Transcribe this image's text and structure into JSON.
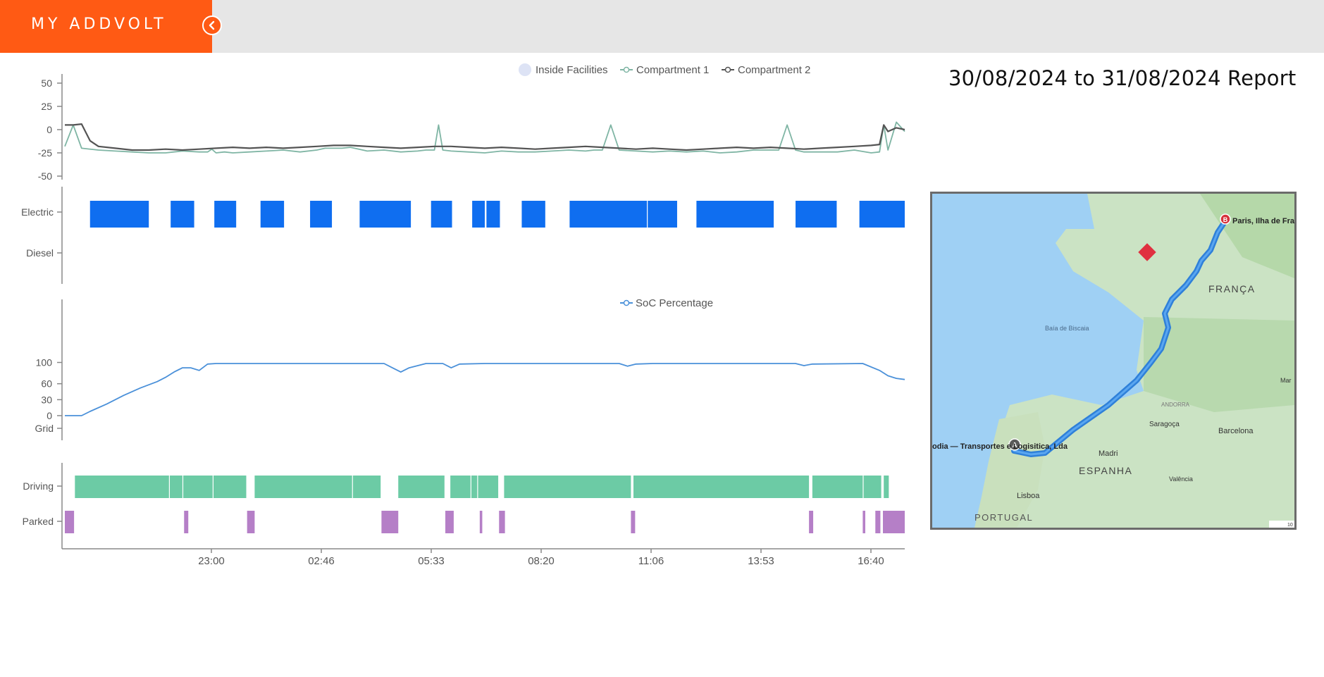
{
  "app": {
    "brand": "MY ADDVOLT",
    "report_title": "30/08/2024 to 31/08/2024 Report"
  },
  "temperature_chart": {
    "legend": [
      "Inside Facilities",
      "Compartment 1",
      "Compartment 2"
    ],
    "y_ticks": [
      "50",
      "25",
      "0",
      "-25",
      "-50"
    ],
    "ylim": [
      -50,
      50
    ]
  },
  "energy_chart": {
    "categories": [
      "Electric",
      "Diesel"
    ]
  },
  "soc_chart": {
    "legend": "SoC Percentage",
    "y_ticks": [
      "100",
      "60",
      "30",
      "0"
    ],
    "grid_label": "Grid"
  },
  "status_chart": {
    "categories": [
      "Driving",
      "Parked"
    ]
  },
  "x_ticks": [
    "23:00",
    "02:46",
    "05:33",
    "08:20",
    "11:06",
    "13:53",
    "16:40"
  ],
  "colors": {
    "brand": "#ff5a14",
    "compartment1": "#7fb5a4",
    "compartment2": "#545454",
    "electric": "#0f6ef0",
    "soc": "#4a90d9",
    "driving": "#6ccba5",
    "parked": "#b57fc7",
    "inside_facilities": "#dde3f5"
  },
  "chart_data": [
    {
      "type": "line",
      "title": "",
      "series": [
        {
          "name": "Compartment 1",
          "x": [
            0,
            1,
            2,
            4,
            6,
            8,
            10,
            12,
            14,
            16,
            17,
            17.5,
            18,
            19,
            20,
            22,
            24,
            26,
            28,
            30,
            31,
            32,
            33,
            34,
            36,
            38,
            40,
            42,
            43,
            44,
            44.5,
            45,
            46,
            48,
            50,
            52,
            54,
            56,
            58,
            60,
            62,
            63,
            64,
            65,
            66,
            68,
            70,
            72,
            74,
            76,
            78,
            80,
            82,
            84,
            85,
            86,
            87,
            88,
            90,
            92,
            94,
            96,
            97,
            97.5,
            98,
            99,
            100
          ],
          "y": [
            -18,
            5,
            -20,
            -22,
            -23,
            -24,
            -25,
            -25,
            -23,
            -24,
            -24,
            -21,
            -25,
            -24,
            -25,
            -24,
            -23,
            -22,
            -24,
            -22,
            -20,
            -20,
            -20,
            -19,
            -23,
            -22,
            -24,
            -23,
            -22,
            -22,
            5,
            -22,
            -23,
            -24,
            -25,
            -23,
            -24,
            -24,
            -23,
            -22,
            -23,
            -22,
            -22,
            5,
            -22,
            -23,
            -24,
            -23,
            -24,
            -23,
            -25,
            -24,
            -22,
            -22,
            -22,
            5,
            -22,
            -24,
            -24,
            -24,
            -22,
            -25,
            -24,
            5,
            -22,
            8,
            -2
          ]
        },
        {
          "name": "Compartment 2",
          "x": [
            0,
            1,
            2,
            3,
            4,
            6,
            8,
            10,
            12,
            14,
            16,
            18,
            20,
            22,
            24,
            26,
            28,
            30,
            32,
            34,
            36,
            38,
            40,
            42,
            44,
            46,
            48,
            50,
            52,
            54,
            56,
            58,
            60,
            62,
            64,
            66,
            68,
            70,
            72,
            74,
            76,
            78,
            80,
            82,
            84,
            86,
            88,
            90,
            92,
            94,
            96,
            97,
            97.5,
            98,
            99,
            100
          ],
          "y": [
            5,
            5,
            6,
            -12,
            -18,
            -20,
            -22,
            -22,
            -21,
            -22,
            -21,
            -20,
            -19,
            -20,
            -19,
            -20,
            -19,
            -18,
            -17,
            -17,
            -18,
            -19,
            -20,
            -19,
            -18,
            -18,
            -19,
            -20,
            -19,
            -20,
            -21,
            -20,
            -19,
            -18,
            -19,
            -20,
            -21,
            -20,
            -21,
            -22,
            -21,
            -20,
            -19,
            -20,
            -19,
            -20,
            -21,
            -20,
            -19,
            -18,
            -17,
            -16,
            5,
            -2,
            2,
            0
          ]
        }
      ],
      "xlabel": "",
      "ylabel": "",
      "ylim": [
        -50,
        50
      ]
    },
    {
      "type": "bar",
      "categories": [
        "Electric",
        "Diesel"
      ],
      "series": [
        {
          "name": "Electric",
          "intervals": [
            [
              3,
              10
            ],
            [
              12.6,
              15.4
            ],
            [
              17.8,
              20.4
            ],
            [
              23.3,
              26.1
            ],
            [
              29.2,
              31.8
            ],
            [
              35.1,
              41.2
            ],
            [
              43.6,
              46.1
            ],
            [
              48.5,
              50.0
            ],
            [
              50.2,
              51.8
            ],
            [
              54.4,
              57.2
            ],
            [
              60.1,
              69.3
            ],
            [
              69.4,
              72.9
            ],
            [
              75.2,
              84.4
            ],
            [
              87.0,
              91.9
            ],
            [
              94.6,
              100
            ]
          ]
        },
        {
          "name": "Diesel",
          "intervals": []
        }
      ]
    },
    {
      "type": "line",
      "series": [
        {
          "name": "SoC Percentage",
          "x": [
            0,
            1,
            2,
            3,
            5,
            7,
            9,
            11,
            12,
            13,
            14,
            15,
            16,
            17,
            18,
            19,
            20,
            24,
            30,
            35,
            38,
            39,
            40,
            41,
            43,
            45,
            46,
            47,
            50,
            55,
            60,
            65,
            66,
            67,
            68,
            70,
            73,
            78,
            85,
            87,
            88,
            89,
            95,
            97,
            98,
            99,
            100
          ],
          "y": [
            0,
            0,
            0,
            8,
            22,
            38,
            52,
            64,
            72,
            82,
            90,
            90,
            85,
            97,
            98,
            98,
            98,
            98,
            98,
            98,
            98,
            90,
            82,
            90,
            98,
            98,
            90,
            97,
            98,
            98,
            98,
            98,
            98,
            93,
            97,
            98,
            98,
            98,
            98,
            98,
            94,
            97,
            98,
            85,
            75,
            70,
            68
          ]
        }
      ],
      "ylim": [
        0,
        100
      ]
    },
    {
      "type": "bar",
      "categories": [
        "Driving",
        "Parked"
      ],
      "series": [
        {
          "name": "Driving",
          "intervals": [
            [
              1.2,
              12.4
            ],
            [
              12.5,
              14.0
            ],
            [
              14.1,
              17.6
            ],
            [
              17.7,
              21.6
            ],
            [
              22.6,
              34.2
            ],
            [
              34.3,
              37.6
            ],
            [
              39.7,
              45.2
            ],
            [
              45.9,
              48.3
            ],
            [
              48.4,
              49.1
            ],
            [
              49.2,
              51.6
            ],
            [
              52.3,
              67.4
            ],
            [
              67.7,
              88.6
            ],
            [
              89.0,
              95.0
            ],
            [
              95.1,
              97.2
            ],
            [
              97.5,
              98.1
            ]
          ]
        },
        {
          "name": "Parked",
          "intervals": [
            [
              0,
              1.1
            ],
            [
              14.2,
              14.7
            ],
            [
              21.7,
              22.6
            ],
            [
              37.7,
              39.7
            ],
            [
              45.3,
              46.3
            ],
            [
              49.4,
              49.7
            ],
            [
              51.7,
              52.4
            ],
            [
              67.4,
              67.9
            ],
            [
              88.6,
              89.1
            ],
            [
              95.0,
              95.3
            ],
            [
              96.5,
              97.1
            ],
            [
              97.4,
              100
            ]
          ]
        }
      ]
    }
  ],
  "map": {
    "labels": {
      "destination": "Paris, Ilha de França, França",
      "origin": "odia — Transportes e Logisitica, Lda",
      "france": "FRANÇA",
      "spain": "ESPANHA",
      "portugal": "PORTUGAL",
      "biscay": "Baía de Biscaia",
      "andorra": "ANDORRA",
      "madrid": "Madri",
      "zaragoza": "Saragoça",
      "barcelona": "Barcelona",
      "valencia": "Valência",
      "lisboa": "Lisboa",
      "marker_a": "A",
      "marker_b": "B",
      "mar": "Mar",
      "scale": "10"
    }
  }
}
